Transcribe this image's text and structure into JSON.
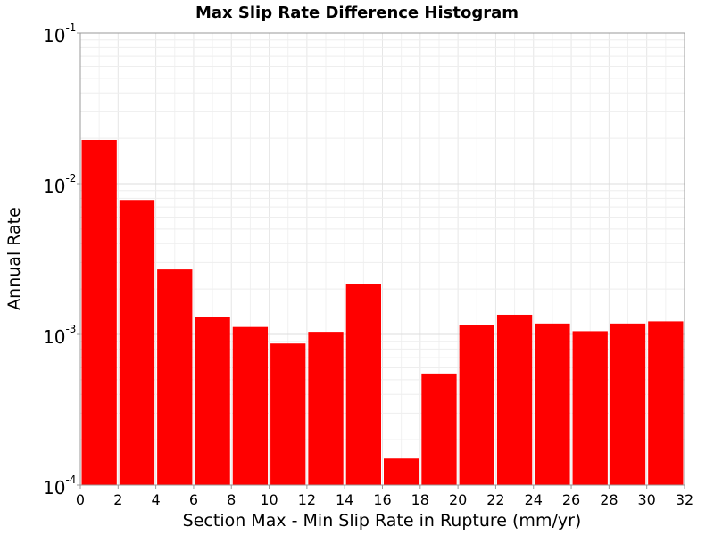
{
  "chart_data": {
    "type": "bar",
    "title": "Max Slip Rate Difference Histogram",
    "xlabel": "Section Max - Min Slip Rate in Rupture (mm/yr)",
    "ylabel": "Annual Rate",
    "xlim": [
      0,
      32
    ],
    "ylim": [
      0.0001,
      0.1
    ],
    "y_scale": "log",
    "bin_width": 2,
    "x_ticks": [
      "0",
      "2",
      "4",
      "6",
      "8",
      "10",
      "12",
      "14",
      "16",
      "18",
      "20",
      "22",
      "24",
      "26",
      "28",
      "30",
      "32"
    ],
    "y_ticks": [
      {
        "base": "10",
        "exp": "-4",
        "value": 0.0001
      },
      {
        "base": "10",
        "exp": "-3",
        "value": 0.001
      },
      {
        "base": "10",
        "exp": "-2",
        "value": 0.01
      },
      {
        "base": "10",
        "exp": "-1",
        "value": 0.1
      }
    ],
    "bin_starts": [
      0,
      2,
      4,
      6,
      8,
      10,
      12,
      14,
      16,
      18,
      20,
      22,
      24,
      26,
      28,
      30
    ],
    "values": [
      0.0195,
      0.0078,
      0.0027,
      0.00131,
      0.00112,
      0.00087,
      0.00104,
      0.00215,
      0.00015,
      0.00055,
      0.00116,
      0.00135,
      0.00118,
      0.00105,
      0.00118,
      0.00122
    ],
    "grid": true,
    "bar_color": "#ff0000"
  }
}
